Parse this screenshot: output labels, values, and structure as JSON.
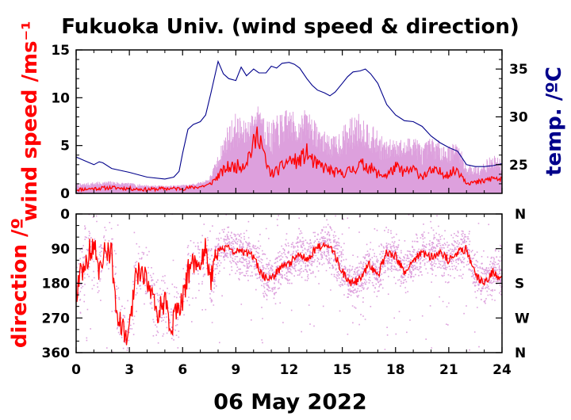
{
  "chart_data": [
    {
      "type": "line",
      "title": "Fukuoka Univ. (wind speed & direction)",
      "ylabel": "wind speed /ms⁻¹",
      "y2label": "temp. /ºC",
      "xlim": [
        0,
        24
      ],
      "ylim": [
        0,
        15
      ],
      "y2lim": [
        22,
        37
      ],
      "x_ticks": [
        "0",
        "3",
        "6",
        "9",
        "12",
        "15",
        "18",
        "21",
        "24"
      ],
      "y_ticks": [
        "0",
        "5",
        "10",
        "15"
      ],
      "y2_ticks": [
        "25",
        "30",
        "35"
      ],
      "colors": {
        "mean": "#ff0000",
        "gust": "#dda0dd",
        "temp": "#00008b",
        "ylabel": "#ff0000",
        "y2label": "#00008b"
      },
      "series": [
        {
          "role": "mean",
          "x": [
            0,
            1,
            2,
            3,
            4,
            5,
            6,
            6.5,
            7,
            7.5,
            8,
            8.5,
            9,
            9.5,
            10,
            10.3,
            10.7,
            11,
            11.5,
            12,
            12.5,
            13,
            13.5,
            14,
            14.5,
            15,
            15.5,
            16,
            16.5,
            17,
            17.5,
            18,
            18.5,
            19,
            19.5,
            20,
            20.5,
            21,
            21.5,
            22,
            22.5,
            23,
            23.5,
            24
          ],
          "values": [
            0.4,
            0.5,
            0.6,
            0.5,
            0.4,
            0.5,
            0.5,
            0.6,
            0.7,
            0.9,
            1.8,
            2.7,
            2.8,
            3.1,
            5.0,
            6.5,
            3.0,
            2.0,
            2.6,
            3.5,
            3.3,
            4.2,
            3.0,
            2.7,
            2.2,
            2.1,
            2.4,
            3.0,
            2.8,
            2.0,
            1.9,
            2.7,
            2.2,
            2.5,
            1.8,
            2.3,
            2.2,
            2.0,
            2.5,
            1.2,
            1.1,
            1.3,
            1.6,
            1.4
          ]
        },
        {
          "role": "gust",
          "x": [
            0,
            1,
            2,
            3,
            4,
            5,
            6,
            6.5,
            7,
            7.5,
            8,
            8.5,
            9,
            9.5,
            10,
            10.3,
            10.7,
            11,
            11.5,
            12,
            12.5,
            13,
            13.5,
            14,
            14.5,
            15,
            15.5,
            16,
            16.5,
            17,
            17.5,
            18,
            18.5,
            19,
            19.5,
            20,
            20.5,
            21,
            21.5,
            22,
            22.5,
            23,
            23.5,
            24
          ],
          "values": [
            1.0,
            1.2,
            1.3,
            1.1,
            0.9,
            0.8,
            0.9,
            1.0,
            1.2,
            1.6,
            4.0,
            7.0,
            8.5,
            7.5,
            8.5,
            9.3,
            8.0,
            7.5,
            8.5,
            9.0,
            8.0,
            9.0,
            7.5,
            6.5,
            6.0,
            7.0,
            8.0,
            8.5,
            7.5,
            6.5,
            5.5,
            6.0,
            5.5,
            6.5,
            5.0,
            6.0,
            5.5,
            5.0,
            5.5,
            3.0,
            3.0,
            3.5,
            4.0,
            3.5
          ]
        },
        {
          "role": "temp",
          "x": [
            0,
            0.5,
            1,
            1.3,
            1.5,
            2,
            3,
            4,
            5,
            5.5,
            5.8,
            6,
            6.3,
            6.6,
            7,
            7.3,
            7.6,
            8,
            8.3,
            8.6,
            9,
            9.3,
            9.6,
            10,
            10.3,
            10.7,
            11,
            11.3,
            11.6,
            12,
            12.3,
            12.6,
            13,
            13.3,
            13.6,
            14,
            14.3,
            14.6,
            15,
            15.3,
            15.6,
            16,
            16.3,
            16.6,
            17,
            17.5,
            18,
            18.5,
            19,
            19.5,
            20,
            20.5,
            21,
            21.5,
            22,
            22.5,
            23,
            23.5,
            24
          ],
          "values": [
            25.8,
            25.4,
            25.0,
            25.3,
            25.2,
            24.6,
            24.2,
            23.7,
            23.5,
            23.7,
            24.3,
            26.2,
            28.7,
            29.2,
            29.5,
            30.2,
            32.5,
            35.8,
            34.5,
            34.0,
            33.8,
            35.2,
            34.3,
            35.0,
            34.6,
            34.6,
            35.3,
            35.1,
            35.6,
            35.7,
            35.5,
            35.1,
            34.0,
            33.3,
            32.8,
            32.5,
            32.2,
            32.6,
            33.5,
            34.2,
            34.7,
            34.8,
            35.0,
            34.5,
            33.5,
            31.3,
            30.2,
            29.6,
            29.5,
            29.0,
            28.0,
            27.3,
            26.8,
            26.4,
            25.0,
            24.8,
            24.8,
            24.9,
            25.1
          ]
        }
      ]
    },
    {
      "type": "scatter",
      "ylabel": "direction /º",
      "xlim": [
        0,
        24
      ],
      "ylim": [
        360,
        0
      ],
      "x_ticks": [
        "0",
        "3",
        "6",
        "9",
        "12",
        "15",
        "18",
        "21",
        "24"
      ],
      "y_ticks": [
        "0",
        "90",
        "180",
        "270",
        "360"
      ],
      "y2_ticks": [
        "N",
        "E",
        "S",
        "W",
        "N"
      ],
      "colors": {
        "mean": "#ff0000",
        "scatter": "#dda0dd",
        "ylabel": "#ff0000"
      },
      "series": [
        {
          "role": "mean",
          "x": [
            0,
            0.5,
            1,
            1.3,
            1.6,
            2,
            2.3,
            2.6,
            3,
            3.3,
            3.6,
            4,
            4.3,
            4.6,
            5,
            5.3,
            5.6,
            6,
            6.3,
            6.6,
            7,
            7.3,
            7.6,
            8,
            8.5,
            9,
            9.5,
            10,
            10.5,
            11,
            11.5,
            12,
            12.5,
            13,
            13.5,
            14,
            14.5,
            15,
            15.5,
            16,
            16.5,
            17,
            17.5,
            18,
            18.5,
            19,
            19.5,
            20,
            20.5,
            21,
            21.5,
            22,
            22.5,
            23,
            23.5,
            24
          ],
          "values": [
            200,
            120,
            80,
            150,
            90,
            110,
            250,
            300,
            310,
            180,
            150,
            160,
            230,
            250,
            230,
            300,
            260,
            220,
            150,
            130,
            140,
            90,
            170,
            90,
            90,
            95,
            100,
            110,
            160,
            170,
            140,
            130,
            100,
            120,
            90,
            80,
            100,
            150,
            180,
            170,
            130,
            160,
            100,
            110,
            150,
            120,
            100,
            110,
            100,
            120,
            100,
            90,
            160,
            180,
            150,
            170
          ]
        }
      ]
    }
  ],
  "xlabel": "06 May 2022"
}
